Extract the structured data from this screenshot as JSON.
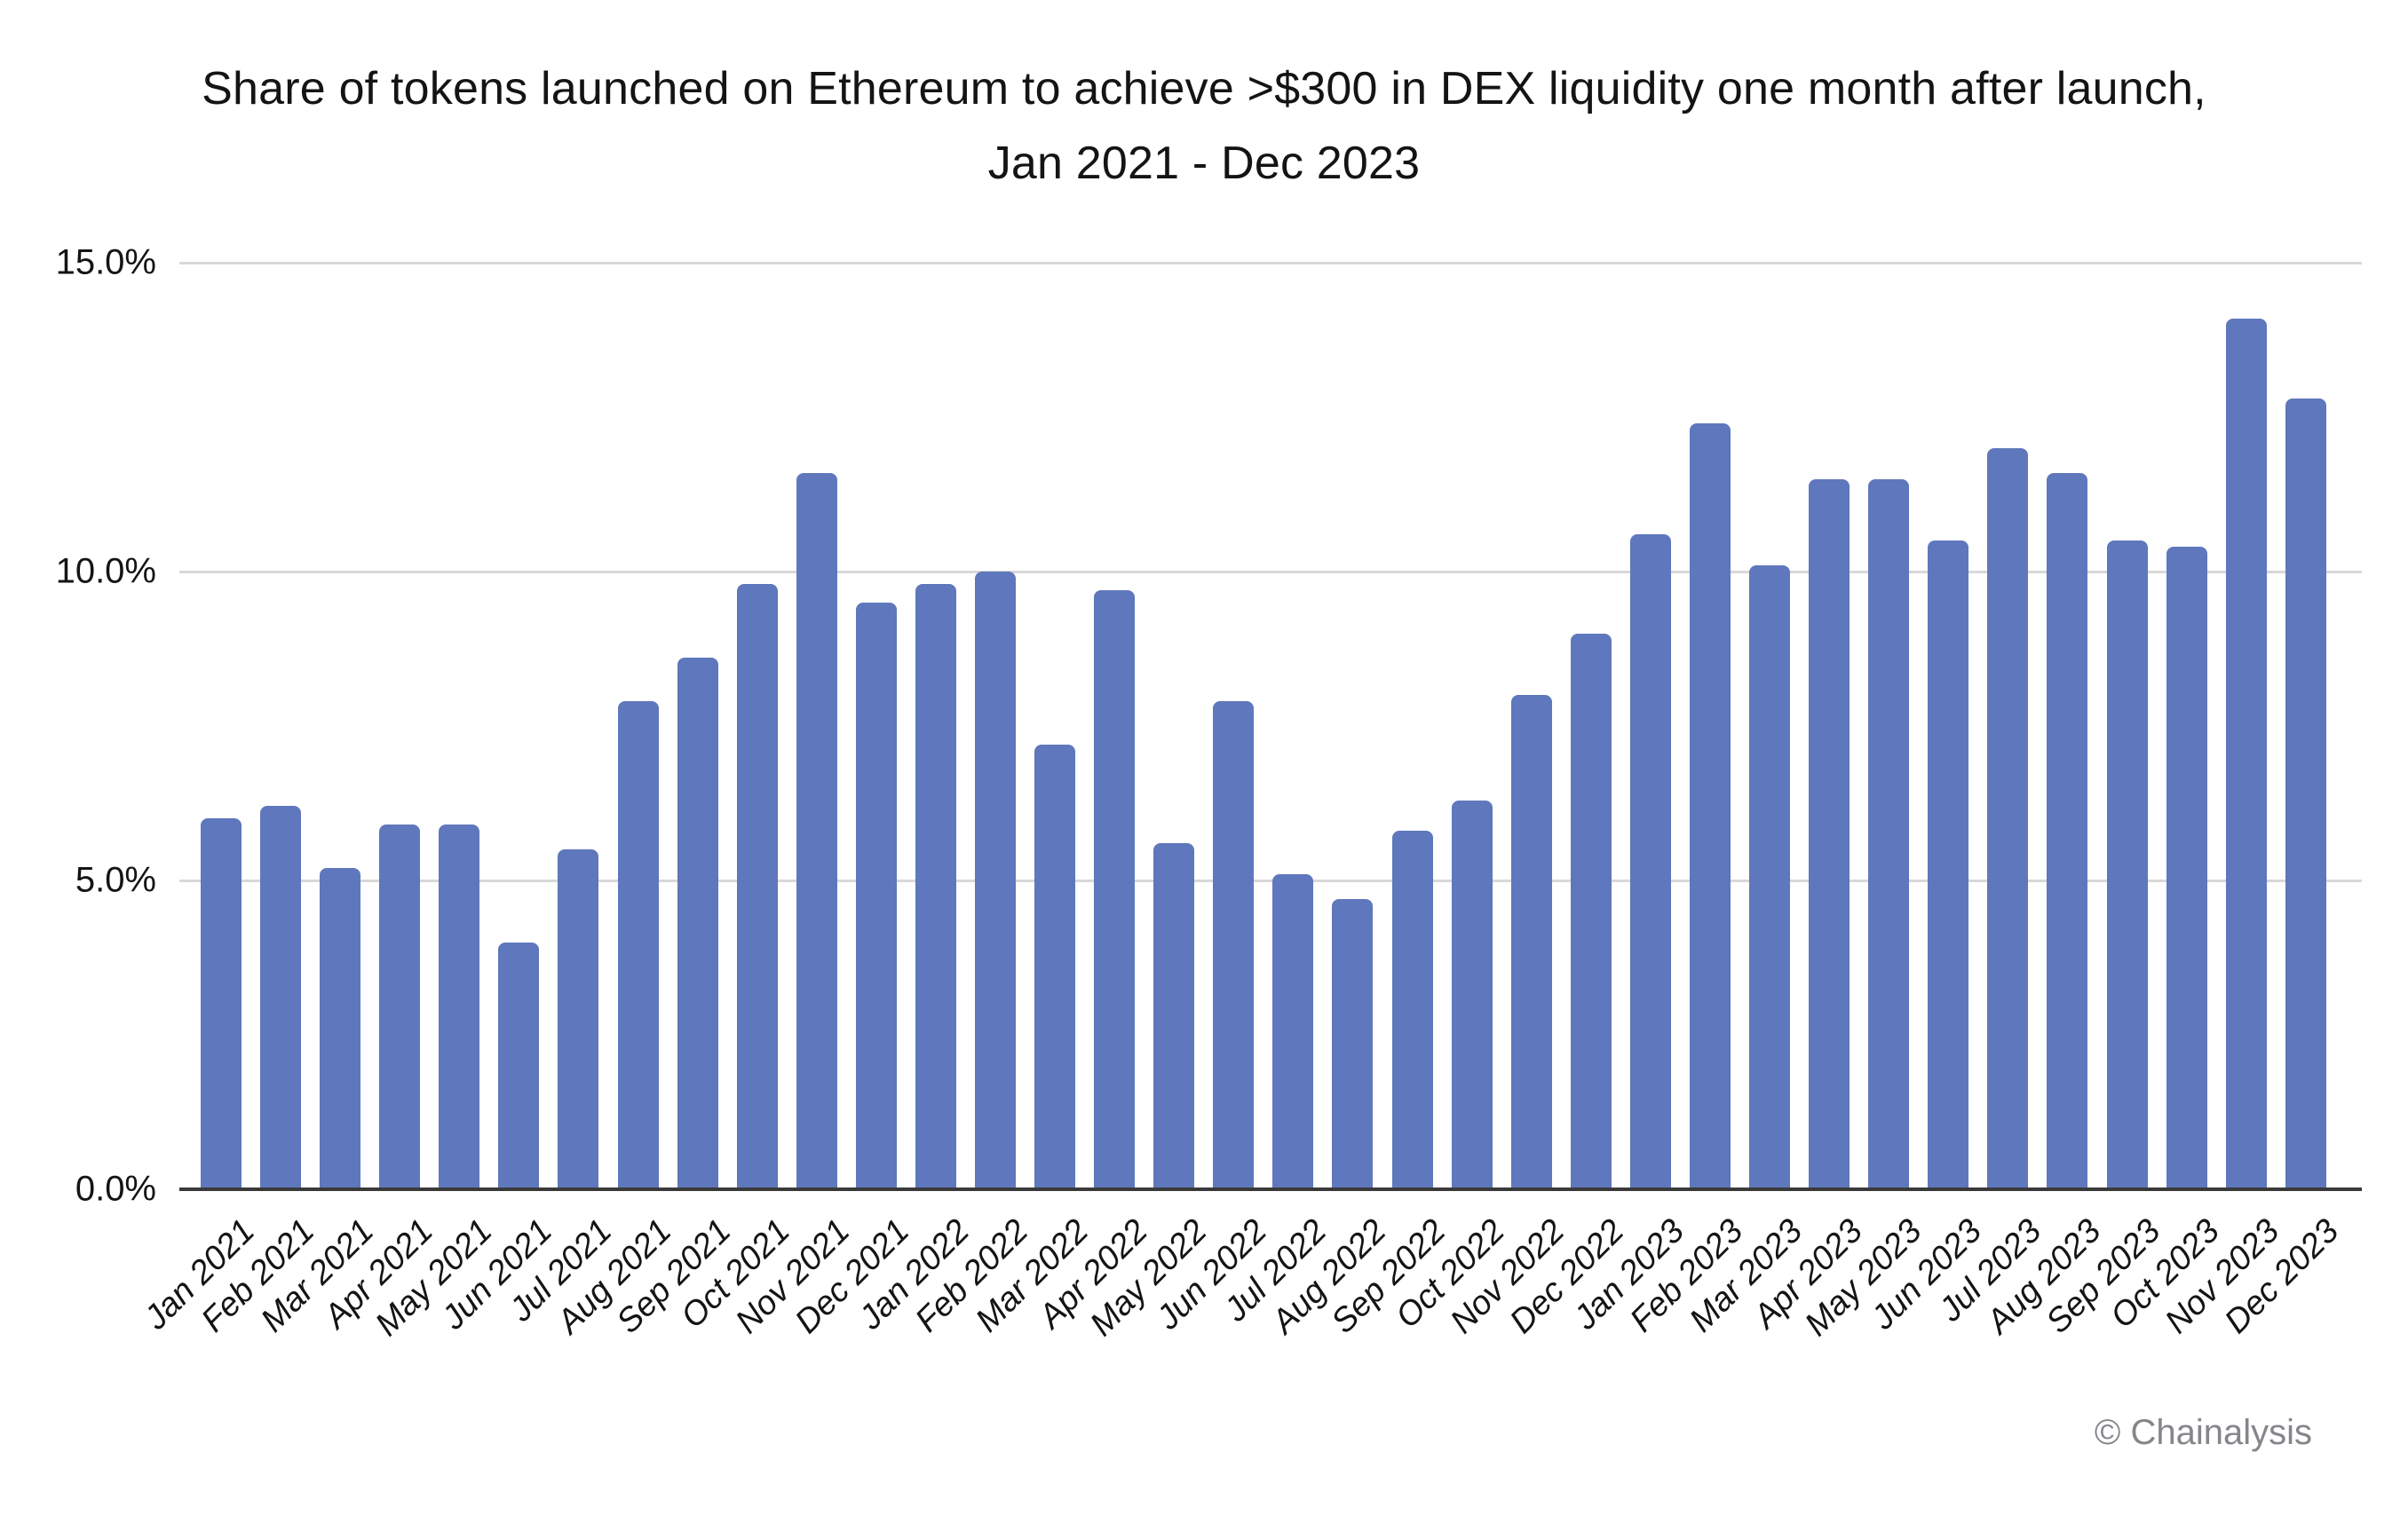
{
  "title": {
    "line1": "Share of tokens launched on Ethereum to achieve >$300 in DEX liquidity one month after launch,",
    "line2": "Jan 2021 - Dec 2023"
  },
  "attribution": "© Chainalysis",
  "colors": {
    "bar": "#5F77BC",
    "gridline": "#D8D8D8",
    "axis_line": "#3A3A3A",
    "text": "#141414",
    "attribution_text": "#85858B"
  },
  "chart_data": {
    "type": "bar",
    "title": "Share of tokens launched on Ethereum to achieve >$300 in DEX liquidity one month after launch, Jan 2021 - Dec 2023",
    "xlabel": "",
    "ylabel": "",
    "ylim": [
      0,
      15
    ],
    "grid": true,
    "legend": false,
    "y_ticks": [
      15,
      10,
      5,
      0
    ],
    "y_tick_labels": [
      "15.0%",
      "10.0%",
      "5.0%",
      "0.0%"
    ],
    "categories": [
      "Jan 2021",
      "Feb 2021",
      "Mar 2021",
      "Apr 2021",
      "May 2021",
      "Jun 2021",
      "Jul 2021",
      "Aug 2021",
      "Sep 2021",
      "Oct 2021",
      "Nov 2021",
      "Dec 2021",
      "Jan 2022",
      "Feb 2022",
      "Mar 2022",
      "Apr 2022",
      "May 2022",
      "Jun 2022",
      "Jul 2022",
      "Aug 2022",
      "Sep 2022",
      "Oct 2022",
      "Nov 2022",
      "Dec 2022",
      "Jan 2023",
      "Feb 2023",
      "Mar 2023",
      "Apr 2023",
      "May 2023",
      "Jun 2023",
      "Jul 2023",
      "Aug 2023",
      "Sep 2023",
      "Oct 2023",
      "Nov 2023",
      "Dec 2023"
    ],
    "values": [
      6.0,
      6.2,
      5.2,
      5.9,
      5.9,
      4.0,
      5.5,
      7.9,
      8.6,
      9.8,
      11.6,
      9.5,
      9.8,
      10.0,
      7.2,
      9.7,
      5.6,
      7.9,
      5.1,
      4.7,
      5.8,
      6.3,
      8.0,
      9.0,
      10.6,
      12.4,
      10.1,
      11.5,
      11.5,
      10.5,
      12.0,
      11.6,
      10.5,
      10.4,
      14.1,
      12.8
    ]
  }
}
